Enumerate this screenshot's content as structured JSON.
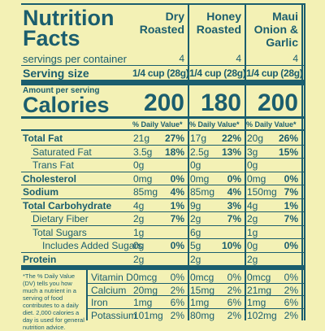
{
  "header": {
    "title": "Nutrition Facts",
    "products": [
      "Dry Roasted",
      "Honey Roasted",
      "Maui Onion & Garlic"
    ]
  },
  "servings": {
    "label": "servings per container",
    "values": [
      4,
      4,
      4
    ]
  },
  "serving_size": {
    "label": "Serving size",
    "values": [
      "1/4 cup (28g)",
      "1/4 cup (28g)",
      "1/4 cup (28g)"
    ]
  },
  "amount_label": "Amount per serving",
  "calories": {
    "label": "Calories",
    "values": [
      200,
      180,
      200
    ]
  },
  "dv_header": "% Daily Value*",
  "nutrients": [
    {
      "label": "Total Fat",
      "bold": true,
      "indent": 0,
      "amounts": [
        "21g",
        "17g",
        "20g"
      ],
      "dvs": [
        "27%",
        "22%",
        "26%"
      ]
    },
    {
      "label": "Saturated Fat",
      "bold": false,
      "indent": 1,
      "amounts": [
        "3.5g",
        "2.5g",
        "3g"
      ],
      "dvs": [
        "18%",
        "13%",
        "15%"
      ]
    },
    {
      "label": "Trans Fat",
      "bold": false,
      "indent": 1,
      "amounts": [
        "0g",
        "0g",
        "0g"
      ]
    },
    {
      "label": "Cholesterol",
      "bold": true,
      "indent": 0,
      "amounts": [
        "0mg",
        "0mg",
        "0mg"
      ],
      "dvs": [
        "0%",
        "0%",
        "0%"
      ]
    },
    {
      "label": "Sodium",
      "bold": true,
      "indent": 0,
      "amounts": [
        "85mg",
        "85mg",
        "150mg"
      ],
      "dvs": [
        "4%",
        "4%",
        "7%"
      ]
    },
    {
      "label": "Total Carbohydrate",
      "bold": true,
      "indent": 0,
      "amounts": [
        "4g",
        "9g",
        "4g"
      ],
      "dvs": [
        "1%",
        "3%",
        "1%"
      ]
    },
    {
      "label": "Dietary Fiber",
      "bold": false,
      "indent": 1,
      "amounts": [
        "2g",
        "2g",
        "2g"
      ],
      "dvs": [
        "7%",
        "7%",
        "7%"
      ]
    },
    {
      "label": "Total Sugars",
      "bold": false,
      "indent": 1,
      "amounts": [
        "1g",
        "6g",
        "1g"
      ]
    },
    {
      "label": "Includes Added Sugars",
      "bold": false,
      "indent": 2,
      "amounts": [
        "0g",
        "5g",
        "0g"
      ],
      "dvs": [
        "0%",
        "10%",
        "0%"
      ]
    },
    {
      "label": "Protein",
      "bold": true,
      "indent": 0,
      "amounts": [
        "2g",
        "2g",
        "2g"
      ]
    }
  ],
  "footnote": "*The % Daily Value (DV) tells you how much a nutrient in a serving of food contributes to a daily diet. 2,000 calories a day is used for general nutrition advice.",
  "vitamins": [
    {
      "label": "Vitamin D",
      "amounts": [
        "0mcg",
        "0mcg",
        "0mcg"
      ],
      "dvs": [
        "0%",
        "0%",
        "0%"
      ]
    },
    {
      "label": "Calcium",
      "amounts": [
        "20mg",
        "15mg",
        "21mg"
      ],
      "dvs": [
        "2%",
        "2%",
        "2%"
      ]
    },
    {
      "label": "Iron",
      "amounts": [
        "1mg",
        "1mg",
        "1mg"
      ],
      "dvs": [
        "6%",
        "6%",
        "6%"
      ]
    },
    {
      "label": "Potassium",
      "amounts": [
        "101mg",
        "80mg",
        "102mg"
      ],
      "dvs": [
        "2%",
        "2%",
        "2%"
      ]
    }
  ]
}
